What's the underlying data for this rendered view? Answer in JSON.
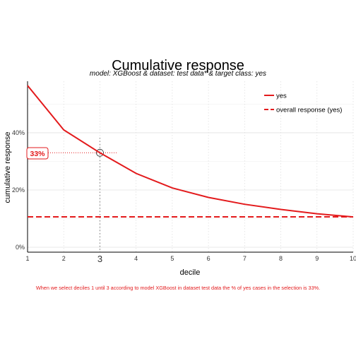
{
  "chart_data": {
    "type": "line",
    "title": "Cumulative response",
    "subtitle": "model: XGBoost  &  dataset: test data*  &  target class: yes",
    "xlabel": "decile",
    "ylabel": "cumulative response",
    "x": [
      1,
      2,
      3,
      4,
      5,
      6,
      7,
      8,
      9,
      10
    ],
    "xticks": [
      "1",
      "2",
      "3",
      "4",
      "5",
      "6",
      "7",
      "8",
      "9",
      "10"
    ],
    "yticks": [
      "0%",
      "20%",
      "40%"
    ],
    "ylim": [
      0,
      0.58
    ],
    "xlim": [
      1,
      10
    ],
    "grid": true,
    "legend_position": "top-right",
    "series": [
      {
        "name": "yes",
        "color": "#e31a1c",
        "style": "solid",
        "values": [
          0.565,
          0.41,
          0.33,
          0.258,
          0.207,
          0.174,
          0.15,
          0.132,
          0.117,
          0.106
        ]
      },
      {
        "name": "overall response (yes)",
        "color": "#e31a1c",
        "style": "dashed",
        "values": [
          0.106,
          0.106,
          0.106,
          0.106,
          0.106,
          0.106,
          0.106,
          0.106,
          0.106,
          0.106
        ]
      }
    ],
    "highlight": {
      "decile": 3,
      "value": 0.33,
      "label": "33%"
    },
    "footnote": "When we select deciles 1 until 3 according to model XGBoost in dataset test data the % of yes cases in the selection is 33%."
  }
}
